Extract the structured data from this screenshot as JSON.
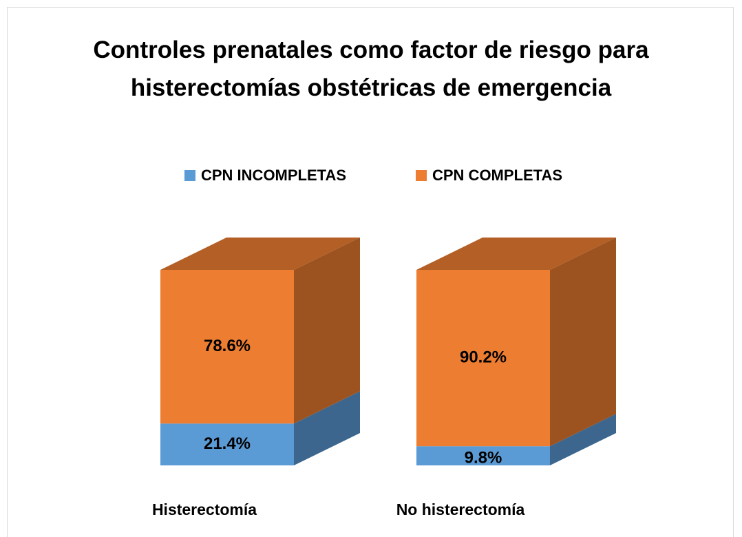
{
  "chart_data": {
    "type": "bar3d_stacked",
    "title": "Controles prenatales como factor de riesgo para histerectomías obstétricas de emergencia",
    "categories": [
      "Histerectomía",
      "No histerectomía"
    ],
    "series": [
      {
        "name": "CPN INCOMPLETAS",
        "color": "#5b9bd5",
        "values": [
          21.4,
          9.8
        ],
        "value_labels": [
          "21.4%",
          "9.8%"
        ]
      },
      {
        "name": "CPN COMPLETAS",
        "color": "#ed7d31",
        "values": [
          78.6,
          90.2
        ],
        "value_labels": [
          "78.6%",
          "90.2%"
        ]
      }
    ],
    "legend": "top"
  }
}
